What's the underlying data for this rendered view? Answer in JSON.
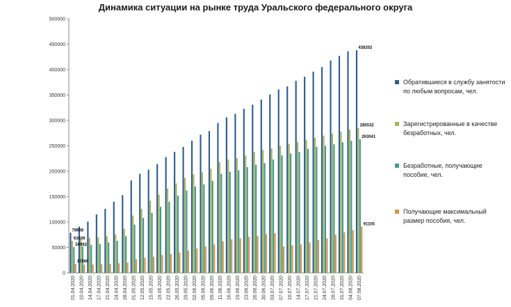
{
  "chart_data": {
    "type": "bar",
    "title": "Динамика ситуации  на рынке труда Уральского федерального округа",
    "xlabel": "",
    "ylabel": "",
    "ylim": [
      0,
      500000
    ],
    "yticks": [
      "0",
      "50000",
      "100000",
      "150000",
      "200000",
      "250000",
      "300000",
      "350000",
      "400000",
      "450000",
      "500000"
    ],
    "grid": false,
    "legend_position": "right",
    "categories": [
      "01.04.2020",
      "10.04.2020",
      "14.04.2020",
      "17.04.2020",
      "21.04.2020",
      "24.04.2020",
      "28.04.2020",
      "01.05.2020",
      "12.05.2020",
      "15.05.2020",
      "19.05.2020",
      "22.05.2020",
      "26.05.2020",
      "29.05.2020",
      "02.06.2020",
      "05.06.2020",
      "09.06.2020",
      "11.06.2020",
      "16.06.2020",
      "19.06.2020",
      "23.06.2020",
      "26.06.2020",
      "30.06.2020",
      "03.07.2020",
      "07.07.2020",
      "10.07.2020",
      "14.07.2020",
      "17.07.2020",
      "21.07.2020",
      "24.07.2020",
      "28.07.2020",
      "31.07.2020",
      "04.08.2020",
      "07.08.2020"
    ],
    "series": [
      {
        "name": "Обратившиеся в службу занятости по любым вопросам, чел.",
        "color": "#2e5b8f",
        "values": [
          78938,
          91000,
          101000,
          115000,
          126000,
          140000,
          153000,
          182000,
          195000,
          203000,
          214000,
          228000,
          238000,
          248000,
          260000,
          272000,
          279000,
          295000,
          306000,
          313000,
          323000,
          331000,
          341000,
          351000,
          361000,
          367000,
          378000,
          386000,
          396000,
          405000,
          418000,
          427000,
          436000,
          438202
        ],
        "labels": {
          "0": "78938",
          "33": "438202"
        }
      },
      {
        "name": "Зарегистрированные в качестве безработных, чел.",
        "color": "#a7b45b",
        "values": [
          63036,
          68000,
          69000,
          70000,
          72000,
          76000,
          87000,
          113000,
          126000,
          142000,
          154000,
          166000,
          176000,
          187000,
          194000,
          198000,
          205000,
          218000,
          223000,
          226000,
          231000,
          238000,
          242000,
          245000,
          250000,
          254000,
          258000,
          262000,
          266000,
          270000,
          274000,
          278000,
          282000,
          285532
        ],
        "labels": {
          "0": "63036",
          "33": "285532"
        }
      },
      {
        "name": "Безработные, получающие пособие, чел.",
        "color": "#3f9b8e",
        "values": [
          50982,
          52000,
          55000,
          57000,
          60000,
          63000,
          72000,
          95000,
          108000,
          118000,
          130000,
          140000,
          152000,
          162000,
          170000,
          174000,
          181000,
          195000,
          199000,
          202000,
          208000,
          213000,
          216000,
          223000,
          231000,
          235000,
          238000,
          244000,
          248000,
          250000,
          253000,
          257000,
          260000,
          263041
        ],
        "labels": {
          "0": "50982",
          "33": "263041"
        }
      },
      {
        "name": "Получающие максимальный размер пособия, чел.",
        "color": "#d8924a",
        "values": [
          17860,
          16000,
          16500,
          17000,
          18000,
          19000,
          20000,
          27000,
          30000,
          32000,
          35000,
          37000,
          40000,
          44000,
          48000,
          52000,
          56000,
          62000,
          66000,
          68000,
          71000,
          73000,
          76000,
          78000,
          52000,
          54000,
          56000,
          60000,
          65000,
          68000,
          75000,
          80000,
          84000,
          91105
        ],
        "labels": {
          "0": "17860",
          "33": "91105"
        }
      }
    ]
  }
}
